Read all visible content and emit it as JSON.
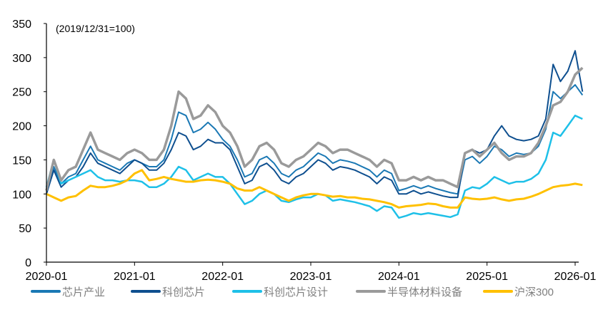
{
  "chart_data": {
    "type": "line",
    "annotation": "(2019/12/31=100)",
    "ylim": [
      0,
      350
    ],
    "yticks": [
      0,
      50,
      100,
      150,
      200,
      250,
      300,
      350
    ],
    "xticks": [
      "2020-01",
      "2021-01",
      "2022-01",
      "2023-01",
      "2024-01",
      "2025-01",
      "2026-01"
    ],
    "x_start": "2020-01",
    "x_step": "month",
    "legend_position": "bottom",
    "series": [
      {
        "name": "芯片产业",
        "color": "#1a78b4",
        "width": 2,
        "values": [
          100,
          140,
          115,
          125,
          130,
          150,
          170,
          150,
          145,
          140,
          135,
          145,
          150,
          145,
          140,
          140,
          150,
          180,
          220,
          215,
          190,
          195,
          205,
          195,
          180,
          170,
          150,
          125,
          130,
          150,
          155,
          145,
          130,
          125,
          135,
          140,
          150,
          160,
          155,
          145,
          150,
          148,
          145,
          140,
          135,
          125,
          135,
          130,
          105,
          108,
          112,
          108,
          112,
          108,
          105,
          102,
          100,
          150,
          155,
          145,
          155,
          170,
          165,
          155,
          160,
          158,
          160,
          170,
          195,
          250,
          240,
          250,
          260,
          245
        ]
      },
      {
        "name": "科创芯片",
        "color": "#0e4f8f",
        "width": 2,
        "values": [
          100,
          135,
          110,
          120,
          125,
          140,
          160,
          145,
          140,
          135,
          130,
          140,
          150,
          145,
          135,
          135,
          145,
          165,
          190,
          185,
          165,
          170,
          180,
          175,
          175,
          165,
          140,
          115,
          120,
          140,
          145,
          135,
          120,
          115,
          125,
          130,
          140,
          150,
          145,
          135,
          140,
          138,
          135,
          130,
          125,
          115,
          125,
          120,
          100,
          100,
          105,
          100,
          103,
          100,
          97,
          95,
          95,
          160,
          165,
          160,
          165,
          185,
          200,
          185,
          180,
          178,
          180,
          185,
          210,
          290,
          265,
          280,
          310,
          250
        ]
      },
      {
        "name": "科创芯片设计",
        "color": "#1ec0e8",
        "width": 2.5,
        "values": [
          110,
          150,
          115,
          120,
          125,
          130,
          135,
          125,
          120,
          120,
          118,
          120,
          120,
          118,
          110,
          110,
          115,
          125,
          140,
          135,
          120,
          125,
          130,
          125,
          125,
          115,
          100,
          85,
          90,
          100,
          105,
          100,
          90,
          88,
          92,
          95,
          95,
          100,
          98,
          90,
          92,
          90,
          88,
          85,
          82,
          75,
          82,
          80,
          65,
          68,
          72,
          70,
          72,
          70,
          68,
          66,
          70,
          105,
          110,
          108,
          115,
          125,
          120,
          115,
          118,
          118,
          122,
          130,
          150,
          190,
          185,
          200,
          215,
          210
        ]
      },
      {
        "name": "半导体材料设备",
        "color": "#9a9a9a",
        "width": 3.5,
        "values": [
          105,
          150,
          120,
          135,
          140,
          165,
          190,
          165,
          160,
          155,
          150,
          160,
          165,
          160,
          150,
          150,
          165,
          200,
          250,
          240,
          210,
          215,
          230,
          220,
          200,
          190,
          170,
          140,
          150,
          170,
          175,
          165,
          145,
          140,
          150,
          155,
          165,
          175,
          170,
          160,
          165,
          165,
          160,
          155,
          150,
          140,
          150,
          145,
          120,
          120,
          125,
          120,
          125,
          120,
          120,
          115,
          110,
          160,
          165,
          155,
          165,
          175,
          160,
          150,
          155,
          155,
          160,
          175,
          200,
          230,
          235,
          250,
          275,
          285
        ]
      },
      {
        "name": "沪深300",
        "color": "#ffc000",
        "width": 3,
        "values": [
          100,
          95,
          90,
          95,
          97,
          105,
          112,
          110,
          110,
          112,
          115,
          120,
          130,
          135,
          120,
          122,
          125,
          122,
          120,
          118,
          118,
          120,
          121,
          120,
          118,
          115,
          108,
          105,
          105,
          110,
          105,
          100,
          95,
          90,
          95,
          98,
          100,
          100,
          98,
          96,
          97,
          95,
          95,
          93,
          92,
          90,
          88,
          85,
          80,
          82,
          83,
          84,
          86,
          85,
          82,
          80,
          80,
          95,
          93,
          92,
          93,
          95,
          92,
          90,
          92,
          93,
          96,
          100,
          105,
          110,
          112,
          113,
          115,
          113
        ]
      }
    ]
  }
}
